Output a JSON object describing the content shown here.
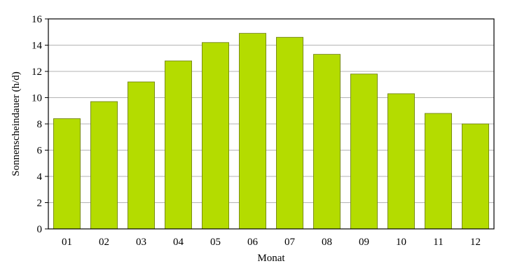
{
  "chart_data": {
    "type": "bar",
    "title": "",
    "xlabel": "Monat",
    "ylabel": "Sonnenscheindauer (h/d)",
    "categories": [
      "01",
      "02",
      "03",
      "04",
      "05",
      "06",
      "07",
      "08",
      "09",
      "10",
      "11",
      "12"
    ],
    "values": [
      8.4,
      9.7,
      11.2,
      12.8,
      14.2,
      14.9,
      14.6,
      13.3,
      11.8,
      10.3,
      8.8,
      8.0
    ],
    "ylim": [
      0,
      16
    ],
    "yticks": [
      0,
      2,
      4,
      6,
      8,
      10,
      12,
      14,
      16
    ],
    "grid": true,
    "legend": "none",
    "bar_color": "#b4dc00"
  }
}
